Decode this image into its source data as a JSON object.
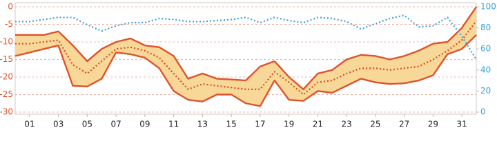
{
  "chart_data": {
    "type": "line",
    "x": [
      0,
      1,
      2,
      3,
      4,
      5,
      6,
      7,
      8,
      9,
      10,
      11,
      12,
      13,
      14,
      15,
      16,
      17,
      18,
      19,
      20,
      21,
      22,
      23,
      24,
      25,
      26,
      27,
      28,
      29,
      30,
      31,
      32
    ],
    "xlim": [
      0,
      32
    ],
    "xticks": [
      {
        "value": 1,
        "label": "01"
      },
      {
        "value": 3,
        "label": "03"
      },
      {
        "value": 5,
        "label": "05"
      },
      {
        "value": 7,
        "label": "07"
      },
      {
        "value": 9,
        "label": "09"
      },
      11,
      13,
      15,
      17,
      19,
      21,
      23,
      25,
      27,
      29,
      31
    ],
    "ylim": [
      -30,
      0
    ],
    "yticks": [
      0,
      -5,
      -10,
      -15,
      -20,
      -25,
      -30
    ],
    "y2lim": [
      0,
      100
    ],
    "y2ticks": [
      0,
      20,
      40,
      60,
      80,
      100
    ],
    "grid": true,
    "y_label_color": "#e0522a",
    "y2_label_color": "#3aa0e0",
    "fill_between": {
      "series": [
        0,
        2
      ],
      "color": "#f7d898"
    },
    "series": [
      {
        "color": "#e0522a",
        "style": "solid",
        "values": [
          -8,
          -8,
          -8,
          -7,
          -11,
          -15.5,
          -12,
          -10,
          -9,
          -11,
          -11.5,
          -14,
          -20.5,
          -19,
          -20.5,
          -20.7,
          -21,
          -17,
          -15.5,
          -20,
          -23.5,
          -19,
          -18,
          -15,
          -13.7,
          -14,
          -15,
          -14,
          -12.5,
          -10.5,
          -10,
          -6,
          0
        ]
      },
      {
        "color": "#d94a1f",
        "style": "dotted",
        "values": [
          -10.5,
          -10.5,
          -10,
          -9.5,
          -16.5,
          -19,
          -15.5,
          -12,
          -11.5,
          -12.5,
          -14.5,
          -19,
          -23.5,
          -22,
          -22.5,
          -23,
          -23.5,
          -23.5,
          -18.5,
          -21.5,
          -25,
          -21.5,
          -21,
          -19,
          -17.5,
          -17.5,
          -18,
          -17.5,
          -17,
          -15,
          -12.5,
          -9.5,
          -4
        ]
      },
      {
        "color": "#e0522a",
        "style": "solid",
        "values": [
          -14,
          -13,
          -12,
          -11,
          -22.5,
          -22.7,
          -20.5,
          -13,
          -13.5,
          -14.5,
          -17.5,
          -24,
          -26.5,
          -27,
          -25,
          -25,
          -27.5,
          -28.3,
          -21,
          -26.5,
          -26.8,
          -24,
          -24.5,
          -22.5,
          -20.5,
          -21.5,
          -22,
          -21.8,
          -21,
          -19.5,
          -13.5,
          -12,
          -8
        ]
      },
      {
        "color": "#3aa0e0",
        "style": "dotted",
        "axis": "y2",
        "values": [
          86,
          86,
          88,
          90,
          90,
          83,
          77,
          82,
          85,
          85,
          89,
          88,
          86,
          86,
          87,
          88,
          90,
          85,
          90,
          87,
          85,
          90,
          89,
          86,
          79,
          84,
          89,
          92,
          81,
          82,
          90,
          72,
          50
        ]
      }
    ]
  }
}
